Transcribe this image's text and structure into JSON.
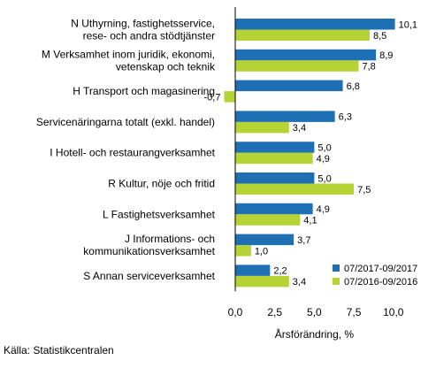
{
  "chart_data": {
    "type": "bar",
    "orientation": "horizontal",
    "categories": [
      [
        "N Uthyrning, fastighetsservice,",
        "rese- och andra stödtjänster"
      ],
      [
        "M Verksamhet inom juridik, ekonomi,",
        "vetenskap och teknik"
      ],
      [
        "H Transport och magasinering"
      ],
      [
        "Servicenäringarna totalt (exkl. handel)"
      ],
      [
        "I Hotell- och restaurangverksamhet"
      ],
      [
        "R Kultur, nöje och fritid"
      ],
      [
        "L Fastighetsverksamhet"
      ],
      [
        "J Informations- och",
        "kommunikationsverksamhet"
      ],
      [
        "S Annan serviceverksamhet"
      ]
    ],
    "series": [
      {
        "name": "07/2017-09/2017",
        "color": "#1f6fb4",
        "values": [
          10.1,
          8.9,
          6.8,
          6.3,
          5.0,
          5.0,
          4.9,
          3.7,
          2.2
        ],
        "labels": [
          "10,1",
          "8,9",
          "6,8",
          "6,3",
          "5,0",
          "5,0",
          "4,9",
          "3,7",
          "2,2"
        ]
      },
      {
        "name": "07/2016-09/2016",
        "color": "#b5d334",
        "values": [
          8.5,
          7.8,
          -0.7,
          3.4,
          4.9,
          7.5,
          4.1,
          1.0,
          3.4
        ],
        "labels": [
          "8,5",
          "7,8",
          "-0,7",
          "3,4",
          "4,9",
          "7,5",
          "4,1",
          "1,0",
          "3,4"
        ]
      }
    ],
    "xlabel": "Årsförändring, %",
    "xticks": [
      0,
      2.5,
      5,
      7.5,
      10
    ],
    "xtick_labels": [
      "0,0",
      "2,5",
      "5,0",
      "7,5",
      "10,0"
    ],
    "xlim": [
      -2,
      11.5
    ],
    "grid": false,
    "legend_position": "bottom-right"
  },
  "source": "Källa: Statistikcentralen"
}
